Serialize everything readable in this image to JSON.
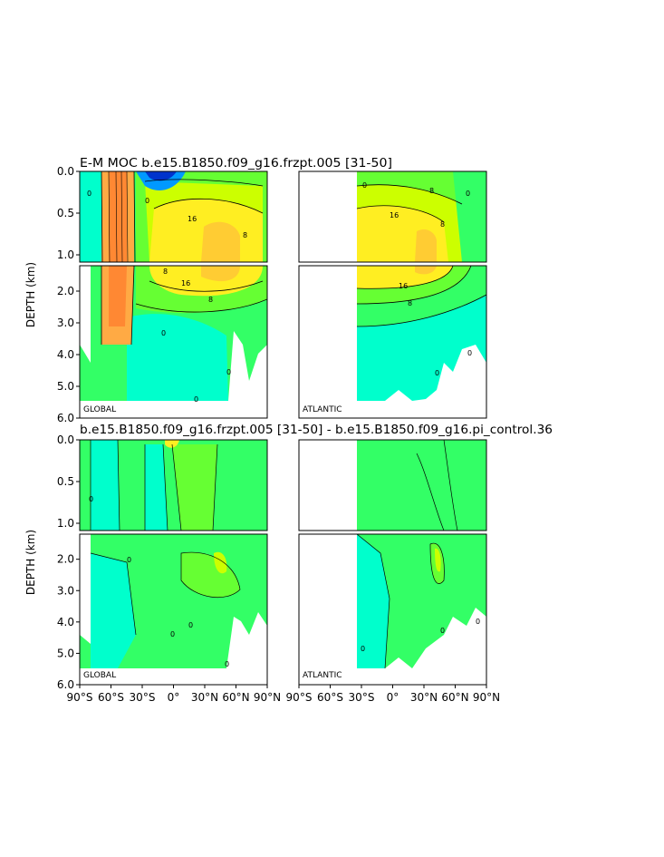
{
  "figure": {
    "top_title": "E-M MOC   b.e15.B1850.f09_g16.frzpt.005  [31-50]",
    "bottom_title": "b.e15.B1850.f09_g16.frzpt.005  [31-50]  -  b.e15.B1850.f09_g16.pi_control.36",
    "depth_label": "DEPTH (km)",
    "upper_depth_ticks": [
      "0.0",
      "0.5",
      "1.0"
    ],
    "lower_depth_ticks": [
      "2.0",
      "3.0",
      "4.0",
      "5.0",
      "6.0"
    ],
    "lat_ticks": [
      "90°S",
      "60°S",
      "30°S",
      "0°",
      "30°N",
      "60°N",
      "90°N"
    ],
    "basin_global": "GLOBAL",
    "basin_atlantic": "ATLANTIC",
    "contour_labels_top_global": [
      "0",
      "8",
      "16",
      "8",
      "16",
      "8",
      "0",
      "0",
      "0",
      "0"
    ],
    "contour_labels_top_atlantic": [
      "0",
      "8",
      "16",
      "8",
      "16",
      "8",
      "0",
      "0",
      "0"
    ],
    "contour_labels_diff": [
      "0",
      "0",
      "0",
      "0",
      "0",
      "0",
      "0",
      "0"
    ]
  },
  "chart_data": [
    {
      "type": "heatmap",
      "title": "E-M MOC   b.e15.B1850.f09_g16.frzpt.005  [31-50]",
      "panel": "GLOBAL",
      "xlabel": "",
      "ylabel": "DEPTH (km)",
      "xlim": [
        -90,
        90
      ],
      "ylim": [
        6.0,
        0.0
      ],
      "x_ticks": [
        "90°S",
        "60°S",
        "30°S",
        "0°",
        "30°N",
        "60°N",
        "90°N"
      ],
      "y_ticks": [
        "0.0",
        "0.5",
        "1.0",
        "2.0",
        "3.0",
        "4.0",
        "5.0",
        "6.0"
      ],
      "contour_labels": [
        0,
        8,
        16
      ]
    },
    {
      "type": "heatmap",
      "title": "E-M MOC   b.e15.B1850.f09_g16.frzpt.005  [31-50]",
      "panel": "ATLANTIC",
      "xlabel": "",
      "ylabel": "DEPTH (km)",
      "xlim": [
        -90,
        90
      ],
      "ylim": [
        6.0,
        0.0
      ],
      "x_ticks": [
        "90°S",
        "60°S",
        "30°S",
        "0°",
        "30°N",
        "60°N",
        "90°N"
      ],
      "y_ticks": [
        "0.0",
        "0.5",
        "1.0",
        "2.0",
        "3.0",
        "4.0",
        "5.0",
        "6.0"
      ],
      "contour_labels": [
        0,
        8,
        16
      ]
    },
    {
      "type": "heatmap",
      "title": "b.e15.B1850.f09_g16.frzpt.005  [31-50]  -  b.e15.B1850.f09_g16.pi_control.36",
      "panel": "GLOBAL",
      "xlabel": "",
      "ylabel": "DEPTH (km)",
      "xlim": [
        -90,
        90
      ],
      "ylim": [
        6.0,
        0.0
      ],
      "x_ticks": [
        "90°S",
        "60°S",
        "30°S",
        "0°",
        "30°N",
        "60°N",
        "90°N"
      ],
      "y_ticks": [
        "0.0",
        "0.5",
        "1.0",
        "2.0",
        "3.0",
        "4.0",
        "5.0",
        "6.0"
      ],
      "contour_labels": [
        0
      ]
    },
    {
      "type": "heatmap",
      "title": "b.e15.B1850.f09_g16.frzpt.005  [31-50]  -  b.e15.B1850.f09_g16.pi_control.36",
      "panel": "ATLANTIC",
      "xlabel": "",
      "ylabel": "DEPTH (km)",
      "xlim": [
        -90,
        90
      ],
      "ylim": [
        6.0,
        0.0
      ],
      "x_ticks": [
        "90°S",
        "60°S",
        "30°S",
        "0°",
        "30°N",
        "60°N",
        "90°N"
      ],
      "y_ticks": [
        "0.0",
        "0.5",
        "1.0",
        "2.0",
        "3.0",
        "4.0",
        "5.0",
        "6.0"
      ],
      "contour_labels": [
        0
      ]
    }
  ]
}
